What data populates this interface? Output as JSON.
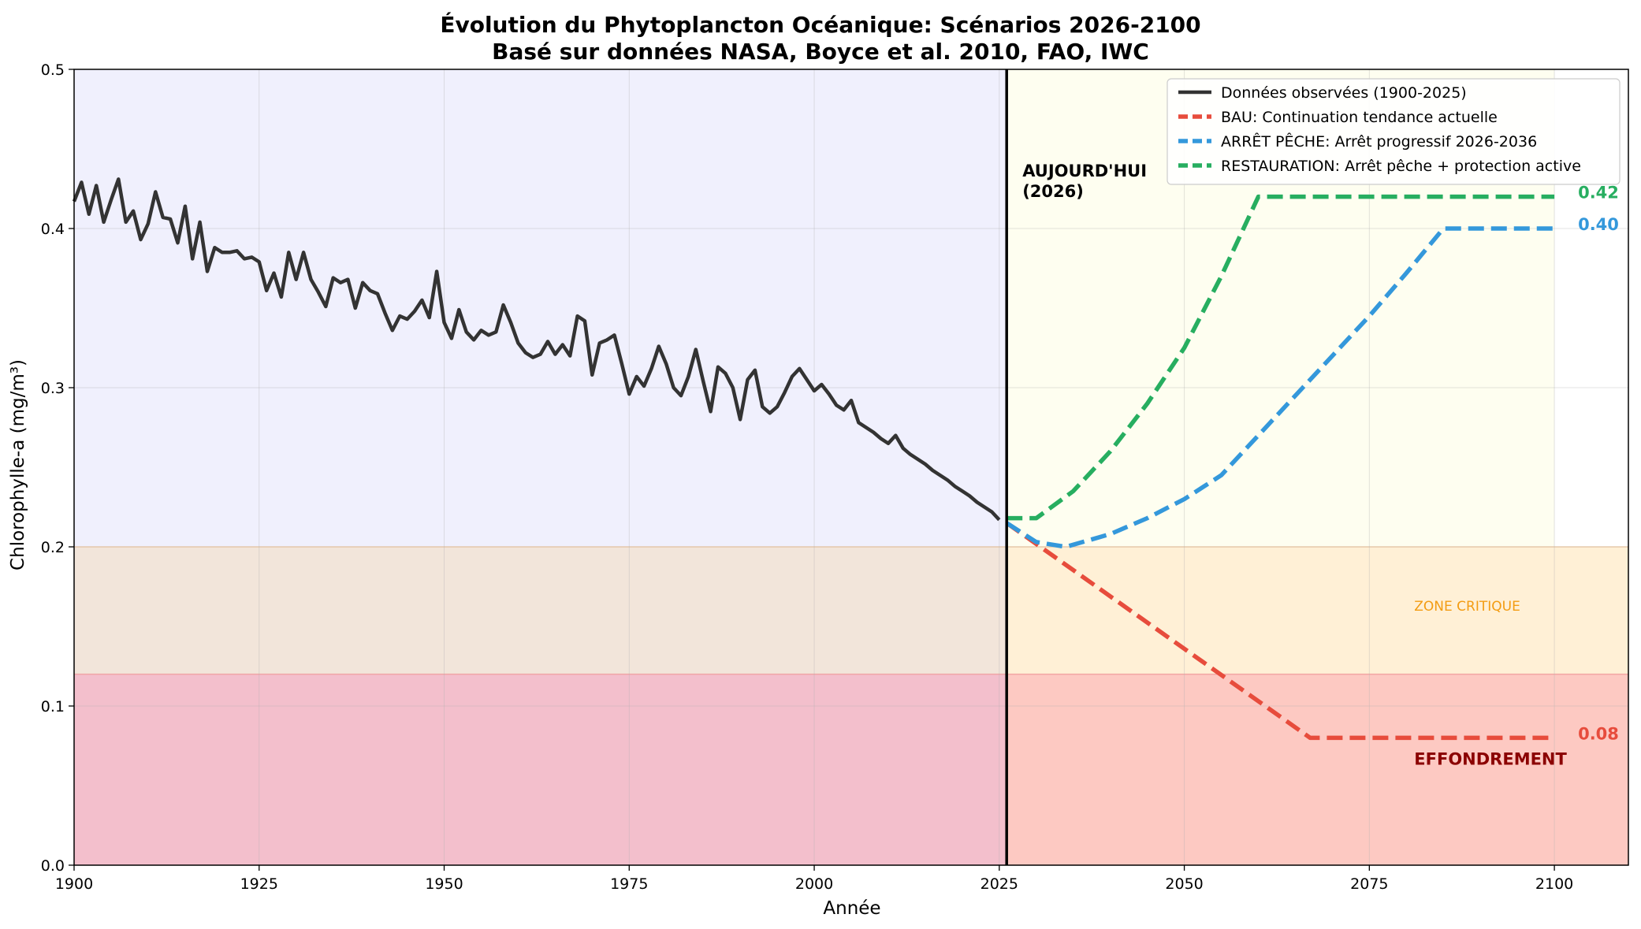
{
  "chart_data": {
    "type": "line",
    "title": "Évolution du Phytoplancton Océanique: Scénarios 2026-2100",
    "subtitle": "Basé sur données NASA, Boyce et al. 2010, FAO, IWC",
    "xlabel": "Année",
    "ylabel": "Chlorophylle-a (mg/m³)",
    "xlim": [
      1900,
      2110
    ],
    "ylim": [
      0,
      0.5
    ],
    "xticks": [
      1900,
      1925,
      1950,
      1975,
      2000,
      2025,
      2050,
      2075,
      2100
    ],
    "yticks": [
      0.0,
      0.1,
      0.2,
      0.3,
      0.4,
      0.5
    ],
    "xtick_labels": [
      "1900",
      "1925",
      "1950",
      "1975",
      "2000",
      "2025",
      "2050",
      "2075",
      "2100"
    ],
    "ytick_labels": [
      "0.0",
      "0.1",
      "0.2",
      "0.3",
      "0.4",
      "0.5"
    ],
    "grid": true,
    "legend_position": "top-right",
    "bands": [
      {
        "name": "effondrement",
        "y0": 0,
        "y1": 0.12,
        "x0": 1900,
        "x1": 2026,
        "color": "#f3bfcc"
      },
      {
        "name": "effondrement",
        "y0": 0,
        "y1": 0.12,
        "x0": 2026,
        "x1": 2110,
        "color": "#fdc9c2"
      },
      {
        "name": "critique",
        "y0": 0.12,
        "y1": 0.2,
        "x0": 1900,
        "x1": 2026,
        "color": "#f2e5da"
      },
      {
        "name": "critique",
        "y0": 0.12,
        "y1": 0.2,
        "x0": 2026,
        "x1": 2110,
        "color": "#fff0d6"
      },
      {
        "name": "historique",
        "y0": 0.2,
        "y1": 0.5,
        "x0": 1900,
        "x1": 2026,
        "color": "#f0f0fd"
      },
      {
        "name": "futur",
        "y0": 0.2,
        "y1": 0.5,
        "x0": 2026,
        "x1": 2100,
        "color": "#fefef0"
      }
    ],
    "today_line": {
      "x": 2026,
      "label_line1": "AUJOURD'HUI",
      "label_line2": "(2026)"
    },
    "zone_labels": [
      {
        "text": "ZONE CRITIQUE",
        "x": 2080,
        "y": 0.16,
        "color": "#f39c12",
        "bold": false
      },
      {
        "text": "EFFONDREMENT",
        "x": 2080,
        "y": 0.063,
        "color": "#8b0000",
        "bold": true
      }
    ],
    "series": [
      {
        "name": "Données observées (1900-2025)",
        "color": "#333333",
        "dashed": false,
        "x": [
          1900,
          1901,
          1902,
          1903,
          1904,
          1905,
          1906,
          1907,
          1908,
          1909,
          1910,
          1911,
          1912,
          1913,
          1914,
          1915,
          1916,
          1917,
          1918,
          1919,
          1920,
          1921,
          1922,
          1923,
          1924,
          1925,
          1926,
          1927,
          1928,
          1929,
          1930,
          1931,
          1932,
          1933,
          1934,
          1935,
          1936,
          1937,
          1938,
          1939,
          1940,
          1941,
          1942,
          1943,
          1944,
          1945,
          1946,
          1947,
          1948,
          1949,
          1950,
          1951,
          1952,
          1953,
          1954,
          1955,
          1956,
          1957,
          1958,
          1959,
          1960,
          1961,
          1962,
          1963,
          1964,
          1965,
          1966,
          1967,
          1968,
          1969,
          1970,
          1971,
          1972,
          1973,
          1974,
          1975,
          1976,
          1977,
          1978,
          1979,
          1980,
          1981,
          1982,
          1983,
          1984,
          1985,
          1986,
          1987,
          1988,
          1989,
          1990,
          1991,
          1992,
          1993,
          1994,
          1995,
          1996,
          1997,
          1998,
          1999,
          2000,
          2001,
          2002,
          2003,
          2004,
          2005,
          2006,
          2007,
          2008,
          2009,
          2010,
          2011,
          2012,
          2013,
          2014,
          2015,
          2016,
          2017,
          2018,
          2019,
          2020,
          2021,
          2022,
          2023,
          2024,
          2025
        ],
        "y": [
          0.417,
          0.429,
          0.409,
          0.427,
          0.404,
          0.418,
          0.431,
          0.404,
          0.411,
          0.393,
          0.403,
          0.423,
          0.407,
          0.406,
          0.391,
          0.414,
          0.381,
          0.404,
          0.373,
          0.388,
          0.385,
          0.385,
          0.386,
          0.381,
          0.382,
          0.379,
          0.361,
          0.372,
          0.357,
          0.385,
          0.368,
          0.385,
          0.368,
          0.36,
          0.351,
          0.369,
          0.366,
          0.368,
          0.35,
          0.366,
          0.361,
          0.359,
          0.347,
          0.336,
          0.345,
          0.343,
          0.348,
          0.355,
          0.344,
          0.373,
          0.341,
          0.331,
          0.349,
          0.335,
          0.33,
          0.336,
          0.333,
          0.335,
          0.352,
          0.341,
          0.328,
          0.322,
          0.319,
          0.321,
          0.329,
          0.321,
          0.327,
          0.32,
          0.345,
          0.342,
          0.308,
          0.328,
          0.33,
          0.333,
          0.315,
          0.296,
          0.307,
          0.301,
          0.312,
          0.326,
          0.315,
          0.3,
          0.295,
          0.307,
          0.324,
          0.304,
          0.285,
          0.313,
          0.309,
          0.3,
          0.28,
          0.305,
          0.311,
          0.288,
          0.284,
          0.288,
          0.297,
          0.307,
          0.312,
          0.305,
          0.298,
          0.302,
          0.296,
          0.289,
          0.286,
          0.292,
          0.278,
          0.275,
          0.272,
          0.268,
          0.265,
          0.27,
          0.262,
          0.258,
          0.255,
          0.252,
          0.248,
          0.245,
          0.242,
          0.238,
          0.235,
          0.232,
          0.228,
          0.225,
          0.222,
          0.217
        ]
      },
      {
        "name": "BAU: Continuation tendance actuelle",
        "color": "#e74c3c",
        "dashed": true,
        "x": [
          2026,
          2067,
          2100
        ],
        "y": [
          0.215,
          0.08,
          0.08
        ]
      },
      {
        "name": "ARRÊT PÊCHE: Arrêt progressif 2026-2036",
        "color": "#3498db",
        "dashed": true,
        "x": [
          2026,
          2030,
          2034,
          2040,
          2045,
          2050,
          2055,
          2060,
          2065,
          2070,
          2075,
          2080,
          2085,
          2100
        ],
        "y": [
          0.215,
          0.203,
          0.2,
          0.208,
          0.218,
          0.23,
          0.245,
          0.27,
          0.295,
          0.32,
          0.345,
          0.372,
          0.4,
          0.4
        ]
      },
      {
        "name": "RESTAURATION: Arrêt pêche + protection active",
        "color": "#27ae60",
        "dashed": true,
        "x": [
          2026,
          2030,
          2035,
          2040,
          2045,
          2050,
          2055,
          2060,
          2100
        ],
        "y": [
          0.218,
          0.218,
          0.235,
          0.26,
          0.29,
          0.325,
          0.37,
          0.42,
          0.42
        ]
      }
    ],
    "end_labels": [
      {
        "text": "0.42",
        "value": 0.42,
        "color": "#27ae60"
      },
      {
        "text": "0.40",
        "value": 0.4,
        "color": "#3498db"
      },
      {
        "text": "0.08",
        "value": 0.08,
        "color": "#e74c3c"
      }
    ]
  }
}
